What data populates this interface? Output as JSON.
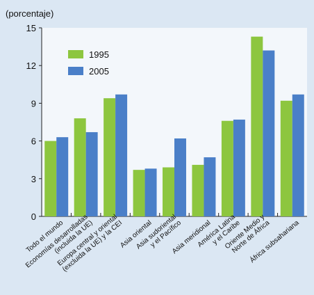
{
  "chart_data": {
    "type": "bar",
    "y_label": "(porcentaje)",
    "categories": [
      "Todo el mundo",
      "Economías desarrolladas\n(incluida la UE)",
      "Europa central y oriental\n(excluida la UE) y la CEI",
      "Asia oriental",
      "Asia sudoriental\ny el Pacífico",
      "Asia meridional",
      "América Latina\ny el Caribe",
      "Oriente Medio y\nNorte de África",
      "África subsahariana"
    ],
    "series": [
      {
        "name": "1995",
        "color": "#8dc63f",
        "values": [
          6.0,
          7.8,
          9.4,
          3.7,
          3.9,
          4.1,
          7.6,
          14.3,
          9.2
        ]
      },
      {
        "name": "2005",
        "color": "#4a7fc8",
        "values": [
          6.3,
          6.7,
          9.7,
          3.8,
          6.2,
          4.7,
          7.7,
          13.2,
          9.7
        ]
      }
    ],
    "ylim": [
      0,
      15
    ],
    "yticks": [
      0,
      3,
      6,
      9,
      12,
      15
    ],
    "legend": "upper left"
  }
}
